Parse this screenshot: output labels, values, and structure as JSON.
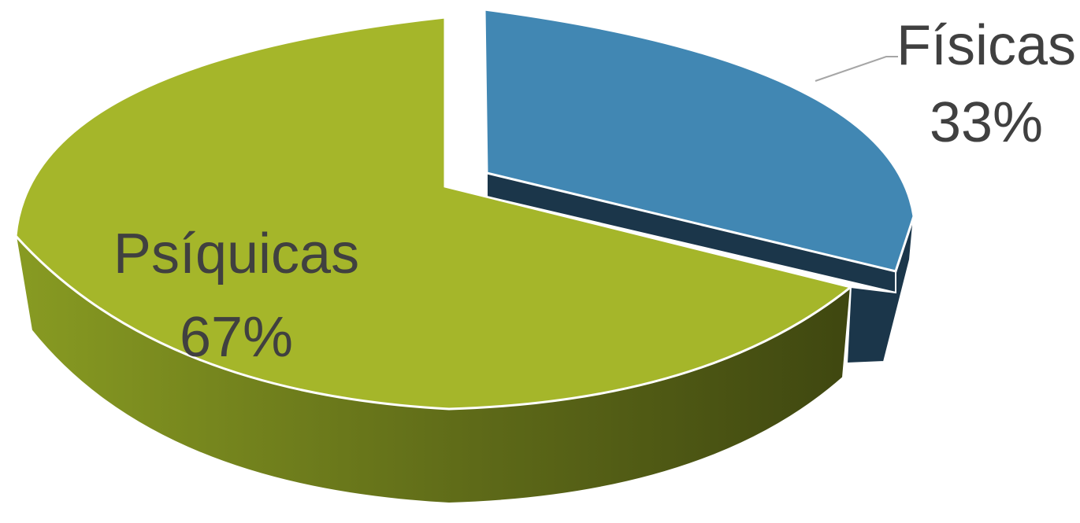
{
  "chart_data": {
    "type": "pie",
    "title": "",
    "style": "3d-exploded",
    "categories": [
      "Físicas",
      "Psíquicas"
    ],
    "values": [
      33,
      67
    ],
    "labels": [
      {
        "name": "Físicas",
        "percent": "33%"
      },
      {
        "name": "Psíquicas",
        "percent": "67%"
      }
    ],
    "colors": {
      "Físicas": {
        "top": "#4187B3",
        "side": "#1B364A"
      },
      "Psíquicas": {
        "top": "#A5B62A",
        "side_light": "#889B22",
        "side_dark": "#3F4710"
      }
    },
    "legend": "none"
  }
}
